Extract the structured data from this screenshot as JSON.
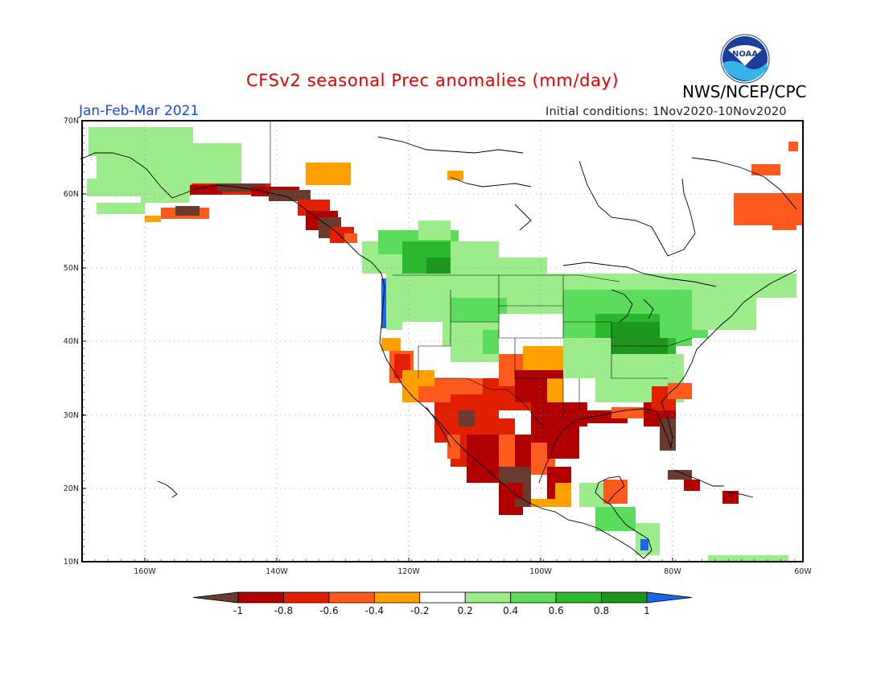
{
  "title": "CFSv2 seasonal Prec anomalies (mm/day)",
  "period": "Jan-Feb-Mar 2021",
  "initial_conditions": "Initial conditions: 1Nov2020-10Nov2020",
  "agency": "NWS/NCEP/CPC",
  "logo_text": "NOAA",
  "lat_labels": [
    "70N",
    "60N",
    "50N",
    "40N",
    "30N",
    "20N",
    "10N"
  ],
  "lon_labels": [
    "160W",
    "140W",
    "120W",
    "100W",
    "80W",
    "60W"
  ],
  "colorbar": {
    "labels": [
      "-1",
      "-0.8",
      "-0.6",
      "-0.4",
      "-0.2",
      "0.2",
      "0.4",
      "0.6",
      "0.8",
      "1"
    ],
    "colors": [
      "#6b3a2e",
      "#b00000",
      "#e02000",
      "#ff5a1e",
      "#ffa000",
      "#ffffff",
      "#9cec8c",
      "#5cdc5c",
      "#2cb82c",
      "#1c961c",
      "#1e64e6"
    ]
  },
  "colors": {
    "title": "#e00000",
    "period": "#1a4ad8"
  }
}
